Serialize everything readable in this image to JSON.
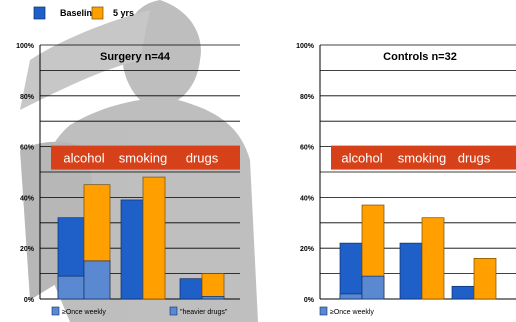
{
  "legend": {
    "items": [
      {
        "label": "Baseline",
        "color": "#1f5fc8"
      },
      {
        "label": "5 yrs",
        "color": "#ffa000"
      }
    ]
  },
  "colors": {
    "baseline": "#1f5fc8",
    "five_yrs": "#ffa000",
    "subset": "#5b89d1",
    "banner": "#d6411a"
  },
  "chart_data": [
    {
      "type": "bar",
      "title": "Surgery n=44",
      "categories": [
        "alcohol",
        "smoking",
        "drugs"
      ],
      "ylim": [
        0,
        100
      ],
      "yticks": [
        "0%",
        "20%",
        "40%",
        "60%",
        "80%",
        "100%"
      ],
      "grid": true,
      "series": [
        {
          "name": "Baseline",
          "values": [
            32,
            39,
            8
          ]
        },
        {
          "name": "5 yrs",
          "values": [
            45,
            48,
            10
          ]
        }
      ],
      "subsets": {
        "Baseline": [
          9,
          0,
          0
        ],
        "5 yrs": [
          15,
          0,
          1
        ]
      },
      "notes": [
        "≥Once weekly",
        "\"heavier drugs\""
      ]
    },
    {
      "type": "bar",
      "title": "Controls n=32",
      "categories": [
        "alcohol",
        "smoking",
        "drugs"
      ],
      "ylim": [
        0,
        100
      ],
      "yticks": [
        "0%",
        "20%",
        "40%",
        "60%",
        "80%",
        "100%"
      ],
      "grid": true,
      "series": [
        {
          "name": "Baseline",
          "values": [
            22,
            22,
            5
          ]
        },
        {
          "name": "5 yrs",
          "values": [
            37,
            32,
            16
          ]
        }
      ],
      "subsets": {
        "Baseline": [
          2,
          0,
          0
        ],
        "5 yrs": [
          9,
          0,
          0
        ]
      },
      "notes": [
        "≥Once weekly"
      ]
    }
  ]
}
